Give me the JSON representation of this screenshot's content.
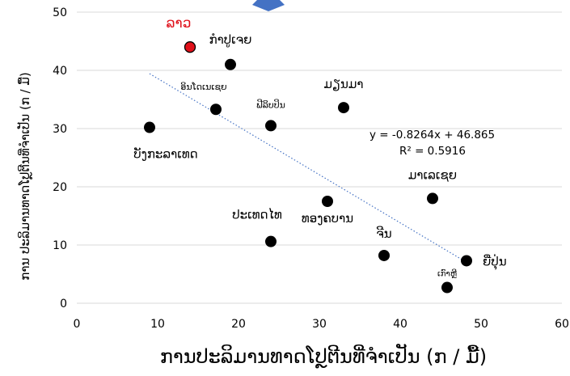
{
  "chart_data": {
    "type": "scatter",
    "xlabel": "ການປະລິມານທາດໂປຼຕີນທີ່ຈຳເປັນ (ກ / ມື້)",
    "ylabel": "ການ ປະລິມານທາດໂປຼຕີນທີ່ຈຳເປັນ (ກ / ມື້)",
    "xlim": [
      0,
      60
    ],
    "ylim": [
      0,
      50
    ],
    "xticks": [
      "0",
      "10",
      "20",
      "30",
      "40",
      "50",
      "60"
    ],
    "yticks": [
      "0",
      "10",
      "20",
      "30",
      "40",
      "50"
    ],
    "grid": "horizontal",
    "colors": {
      "point": "#000000",
      "highlight": "#e0101a",
      "highlight_label": "#e0101a",
      "trendline": "#4472c4",
      "grid": "#d9d9d9",
      "marker_top": "#4472c4"
    },
    "points": [
      {
        "label": "ລາວ",
        "x": 14,
        "y": 44,
        "highlight": true
      },
      {
        "label": "ກຳປູເຈຍ",
        "x": 19,
        "y": 41
      },
      {
        "label": "ອິນໂດເນເຊຍ",
        "x": 17.2,
        "y": 33.3
      },
      {
        "label": "ຟີລິບປິນ",
        "x": 24,
        "y": 30.5
      },
      {
        "label": "ມຽນມາ",
        "x": 33,
        "y": 33.6
      },
      {
        "label": "ບັງກະລາເທດ",
        "x": 9,
        "y": 30.2
      },
      {
        "label": "ມາເລເຊຍ",
        "x": 44,
        "y": 18
      },
      {
        "label": "ທອງຄບານ",
        "x": 31,
        "y": 17.5
      },
      {
        "label": "ປະເທດໄທ",
        "x": 24,
        "y": 10.6
      },
      {
        "label": "ຈີນ",
        "x": 38,
        "y": 8.2
      },
      {
        "label": "ຍີ່ປຸ່ນ",
        "x": 48.2,
        "y": 7.3
      },
      {
        "label": "ເກົາຫຼີ",
        "x": 45.8,
        "y": 2.7
      }
    ],
    "trendline": {
      "slope": -0.8264,
      "intercept": 46.865,
      "x_range": [
        9,
        48.2
      ],
      "equation": "y = -0.8264x + 46.865",
      "r2": "R² = 0.5916"
    }
  }
}
